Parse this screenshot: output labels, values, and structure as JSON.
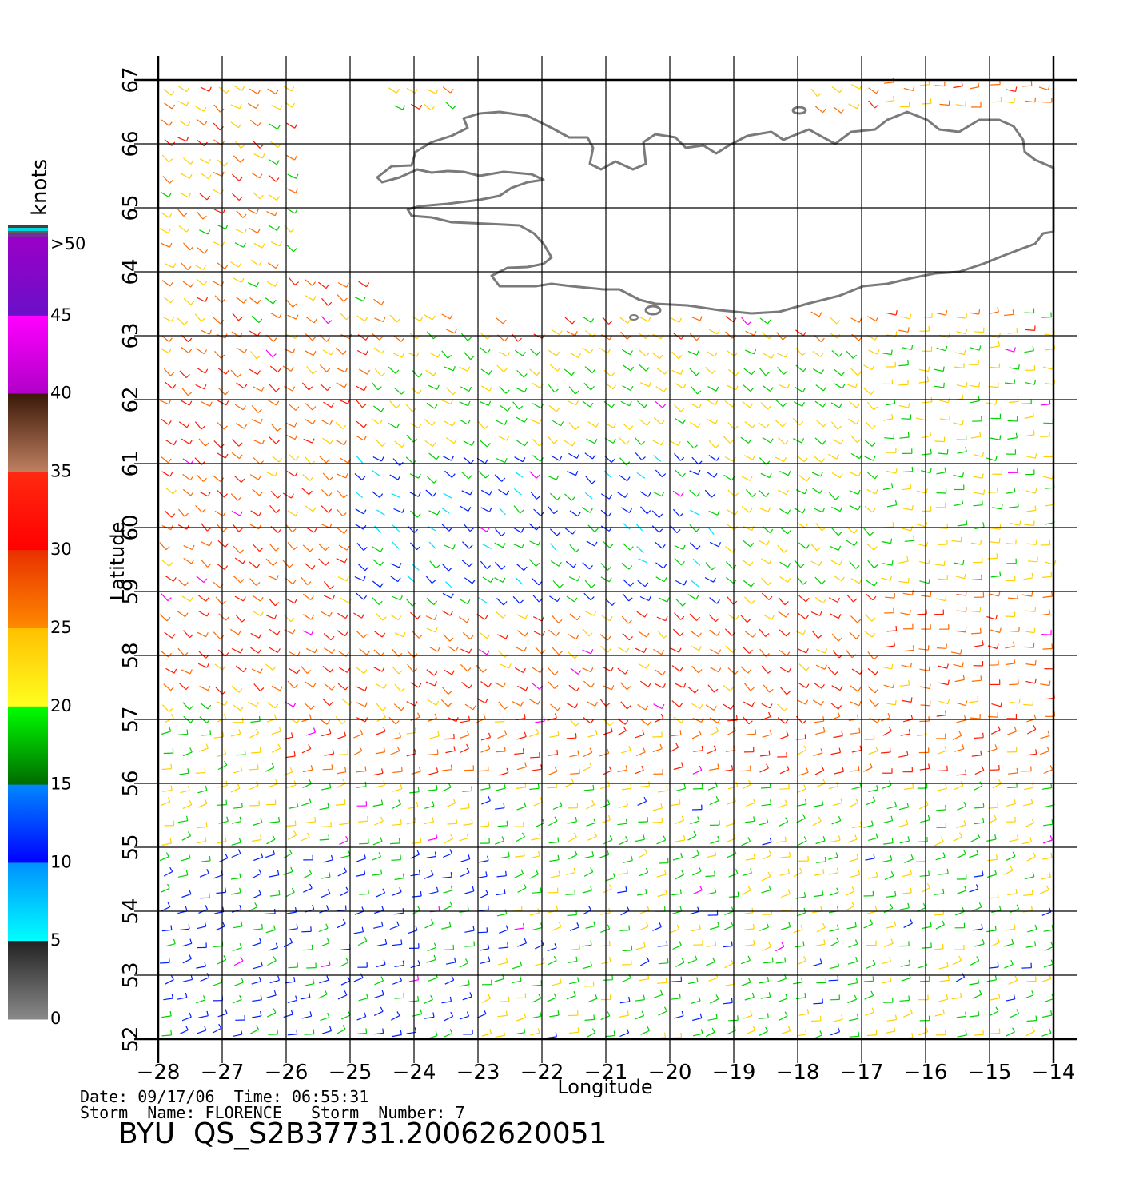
{
  "map": {
    "x_axis_label": "Longitude",
    "y_axis_label": "Latitude",
    "lon_range": [
      -28,
      -14
    ],
    "lat_range": [
      52,
      67
    ],
    "lon_ticks": [
      "−28",
      "−27",
      "−26",
      "−25",
      "−24",
      "−23",
      "−22",
      "−21",
      "−20",
      "−19",
      "−18",
      "−17",
      "−16",
      "−15",
      "−14"
    ],
    "lat_ticks": [
      "52",
      "53",
      "54",
      "55",
      "56",
      "57",
      "58",
      "59",
      "60",
      "61",
      "62",
      "63",
      "64",
      "65",
      "66",
      "67"
    ],
    "grid": true,
    "land": "Iceland (south coast)",
    "wind_barbs": "colored by speed in knots"
  },
  "colorbar": {
    "unit": "knots",
    "labels": [
      ">50",
      "45",
      "40",
      "35",
      "30",
      "25",
      "20",
      "15",
      "10",
      "5",
      "0"
    ],
    "colors": {
      "0-5": "#555555",
      "5-10": "#00e0ff",
      "10-15": "#0020ff",
      "15-20": "#00d000",
      "20-25": "#ffd000",
      "25-30": "#ff6a00",
      "30-35": "#ff1a00",
      "35-40": "#7a3a20",
      "40-45": "#ff00ff",
      "45-50": "#8000c0"
    }
  },
  "footer": {
    "date_label": "Date:",
    "date_value": "09/17/06",
    "time_label": "Time:",
    "time_value": "06:55:31",
    "storm_name_label": "Storm  Name:",
    "storm_name_value": "FLORENCE",
    "storm_number_label": "Storm  Number:",
    "storm_number_value": "7",
    "product_id": "BYU  QS_S2B37731.20062620051"
  }
}
